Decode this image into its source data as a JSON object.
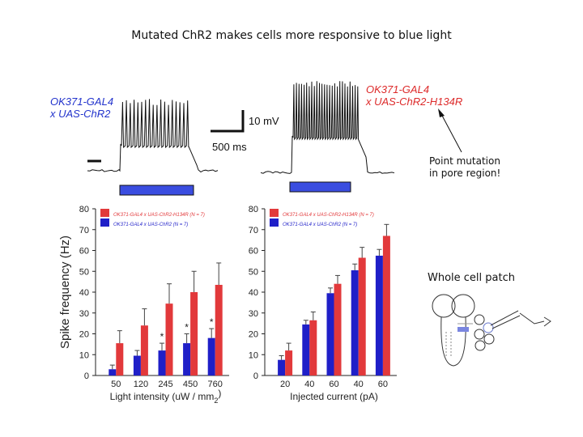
{
  "title": "Mutated ChR2 makes cells more responsive to blue light",
  "traces": {
    "left_label": [
      "OK371-GAL4",
      "x UAS-ChR2"
    ],
    "right_label": [
      "OK371-GAL4",
      "x UAS-ChR2-H134R"
    ],
    "scale_voltage": "10 mV",
    "scale_time": "500 ms"
  },
  "notes": {
    "point_mutation": [
      "Point mutation",
      "in pore region!"
    ],
    "whole_cell": "Whole cell patch"
  },
  "colors": {
    "red": "#e2393b",
    "blue": "#1f1fc8",
    "stim": "#3a4de0"
  },
  "chart_data": [
    {
      "type": "bar",
      "ylabel": "Spike frequency (Hz)",
      "xlabel": "Light intensity (uW / mm",
      "xlabel_sup": "2",
      "xlabel_end": ")",
      "ylim": [
        0,
        80
      ],
      "yticks": [
        "0",
        "10",
        "20",
        "30",
        "40",
        "50",
        "60",
        "70",
        "80"
      ],
      "categories": [
        "50",
        "120",
        "245",
        "450",
        "760"
      ],
      "series": [
        {
          "name": "OK371-GAL4 x UAS-ChR2 (N = 7)",
          "values": [
            3,
            9.5,
            12,
            15.5,
            18
          ],
          "err": [
            2,
            2.5,
            3.5,
            4.5,
            4.5
          ]
        },
        {
          "name": "OK371-GAL4 x UAS-ChR2-H134R (N = 7)",
          "values": [
            15.5,
            24,
            34.5,
            40,
            43.5
          ],
          "err": [
            6,
            8,
            9.5,
            10,
            10.5
          ]
        }
      ],
      "annotations": [
        "*",
        "*",
        "*"
      ]
    },
    {
      "type": "bar",
      "xlabel": "Injected current (pA)",
      "ylim": [
        0,
        80
      ],
      "yticks": [
        "0",
        "10",
        "20",
        "30",
        "40",
        "50",
        "60",
        "70",
        "80"
      ],
      "categories": [
        "20",
        "40",
        "60",
        "40",
        "60"
      ],
      "series": [
        {
          "name": "OK371-GAL4 x UAS-ChR2 (N = 7)",
          "values": [
            7.5,
            24.5,
            39.5,
            50.5,
            57.5
          ],
          "err": [
            2,
            2,
            2.5,
            3,
            3
          ]
        },
        {
          "name": "OK371-GAL4 x UAS-ChR2-H134R (N = 7)",
          "values": [
            12,
            26.5,
            44,
            56.5,
            67
          ],
          "err": [
            3.5,
            4,
            4,
            5,
            5.5
          ]
        }
      ]
    }
  ]
}
